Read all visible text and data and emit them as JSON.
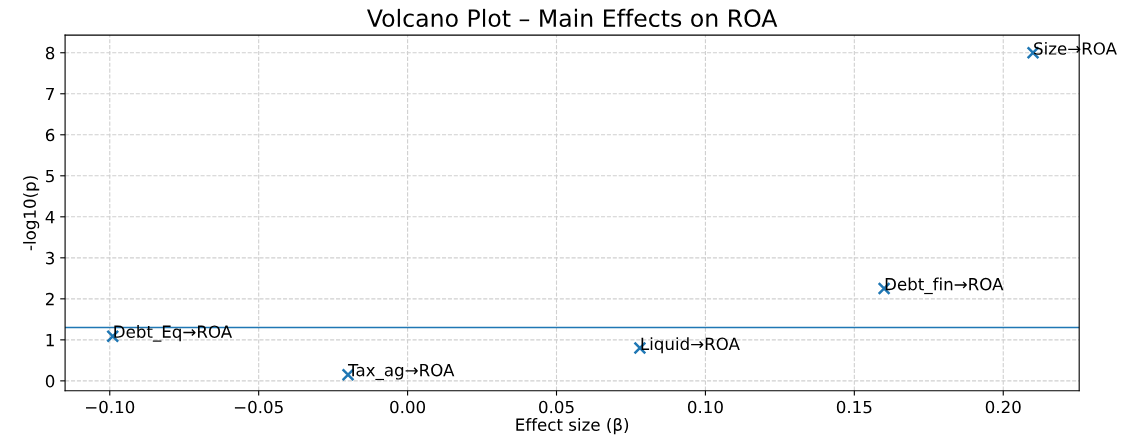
{
  "chart_data": {
    "type": "scatter",
    "title": "Volcano Plot – Main Effects on ROA",
    "xlabel": "Effect size (β)",
    "ylabel": "-log10(p)",
    "x": [
      -0.099,
      -0.02,
      0.078,
      0.16,
      0.21
    ],
    "series": [
      {
        "color": "#1f77b4",
        "values": [
          1.09,
          0.15,
          0.8,
          2.25,
          8.0
        ]
      }
    ],
    "annotations": [
      {
        "text": "Debt_Eq→ROA",
        "x": -0.099,
        "y": 1.09
      },
      {
        "text": "Tax_ag→ROA",
        "x": -0.02,
        "y": 0.15
      },
      {
        "text": "Liquid→ROA",
        "x": 0.078,
        "y": 0.8
      },
      {
        "text": "Debt_fin→ROA",
        "x": 0.16,
        "y": 2.25
      },
      {
        "text": "Size→ROA",
        "x": 0.21,
        "y": 8.0
      }
    ],
    "ref_lines": [
      {
        "axis": "y",
        "value": 1.3,
        "color": "#1f77b4",
        "line_style": "solid"
      }
    ],
    "xlim": [
      -0.115,
      0.2255
    ],
    "ylim": [
      -0.24,
      8.43
    ],
    "xticks": [
      {
        "value": -0.1,
        "label": "−0.10"
      },
      {
        "value": -0.05,
        "label": "−0.05"
      },
      {
        "value": 0,
        "label": "0.00"
      },
      {
        "value": 0.05,
        "label": "0.05"
      },
      {
        "value": 0.1,
        "label": "0.10"
      },
      {
        "value": 0.15,
        "label": "0.15"
      },
      {
        "value": 0.2,
        "label": "0.20"
      }
    ],
    "yticks": [
      0,
      1,
      2,
      3,
      4,
      5,
      6,
      7,
      8
    ],
    "grid": true,
    "marker": "cross"
  }
}
